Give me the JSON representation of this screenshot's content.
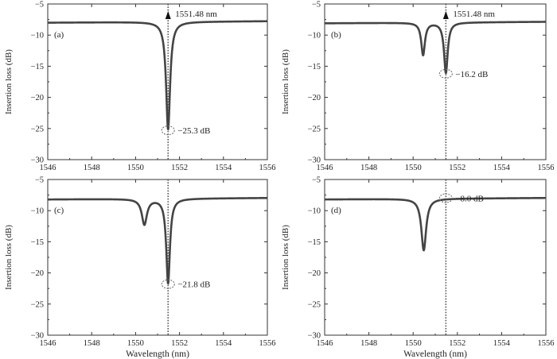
{
  "chart_data": [
    {
      "type": "line",
      "panel_label": "(a)",
      "ylabel": "Insertion loss (dB)",
      "xlabel": "",
      "xlim": [
        1546,
        1556
      ],
      "ylim": [
        -30,
        -5
      ],
      "xticks": [
        1546,
        1548,
        1550,
        1552,
        1554,
        1556
      ],
      "yticks": [
        -5,
        -10,
        -15,
        -20,
        -25,
        -30
      ],
      "baseline": -8.0,
      "dips": [
        {
          "center": 1551.48,
          "depth": -25.3,
          "width": 0.11
        }
      ],
      "marker_wavelength": 1551.48,
      "annotations": [
        {
          "text": "1551.48 nm",
          "x": 1551.48,
          "y": -6.2,
          "kind": "arrow"
        },
        {
          "text": "−25.3 dB",
          "x": 1551.48,
          "y": -25.3,
          "kind": "circle"
        }
      ]
    },
    {
      "type": "line",
      "panel_label": "(b)",
      "ylabel": "Insertion loss (dB)",
      "xlabel": "",
      "xlim": [
        1546,
        1556
      ],
      "ylim": [
        -30,
        -5
      ],
      "xticks": [
        1546,
        1548,
        1550,
        1552,
        1554,
        1556
      ],
      "yticks": [
        -5,
        -10,
        -15,
        -20,
        -25,
        -30
      ],
      "baseline": -8.1,
      "dips": [
        {
          "center": 1550.45,
          "depth": -13.3,
          "width": 0.1
        },
        {
          "center": 1551.48,
          "depth": -16.2,
          "width": 0.1
        }
      ],
      "marker_wavelength": 1551.48,
      "annotations": [
        {
          "text": "1551.48 nm",
          "x": 1551.48,
          "y": -6.2,
          "kind": "arrow"
        },
        {
          "text": "−16.2 dB",
          "x": 1551.48,
          "y": -16.2,
          "kind": "circle"
        }
      ]
    },
    {
      "type": "line",
      "panel_label": "(c)",
      "ylabel": "Insertion loss (dB)",
      "xlabel": "Wavelength (nm)",
      "xlim": [
        1546,
        1556
      ],
      "ylim": [
        -30,
        -5
      ],
      "xticks": [
        1546,
        1548,
        1550,
        1552,
        1554,
        1556
      ],
      "yticks": [
        -5,
        -10,
        -15,
        -20,
        -25,
        -30
      ],
      "baseline": -8.2,
      "dips": [
        {
          "center": 1550.4,
          "depth": -12.3,
          "width": 0.14
        },
        {
          "center": 1551.48,
          "depth": -21.8,
          "width": 0.1
        }
      ],
      "marker_wavelength": 1551.48,
      "annotations": [
        {
          "text": "−21.8 dB",
          "x": 1551.48,
          "y": -21.8,
          "kind": "circle"
        }
      ]
    },
    {
      "type": "line",
      "panel_label": "(d)",
      "ylabel": "Insertion loss (dB)",
      "xlabel": "Wavelength (nm)",
      "xlim": [
        1546,
        1556
      ],
      "ylim": [
        -30,
        -5
      ],
      "xticks": [
        1546,
        1548,
        1550,
        1552,
        1554,
        1556
      ],
      "yticks": [
        -5,
        -10,
        -15,
        -20,
        -25,
        -30
      ],
      "baseline": -8.2,
      "dips": [
        {
          "center": 1550.48,
          "depth": -16.5,
          "width": 0.13
        }
      ],
      "marker_wavelength": 1551.48,
      "annotations": [
        {
          "text": "−8.0 dB",
          "x": 1551.48,
          "y": -8.0,
          "kind": "circle"
        }
      ]
    }
  ]
}
